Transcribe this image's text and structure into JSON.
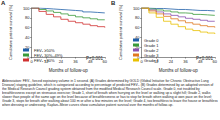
{
  "chart_data": [
    {
      "type": "line",
      "title": "A",
      "x_label": "Months of follow-up",
      "y_label": "Cumulative patient survival (%)",
      "x": [
        0,
        6,
        12,
        18,
        24,
        30,
        36,
        42,
        48,
        54,
        60
      ],
      "series": [
        {
          "name": "FEV₁ ≥50%",
          "color": "#1f5fa8",
          "values": [
            100,
            99,
            98,
            97,
            96,
            95,
            94,
            92,
            91,
            90,
            89
          ]
        },
        {
          "name": "FEV₁ 30%–49%",
          "color": "#3a9a3a",
          "values": [
            100,
            97,
            94,
            91,
            88,
            85,
            82,
            80,
            78,
            76,
            75
          ]
        },
        {
          "name": "FEV₁ <30%",
          "color": "#d03030",
          "values": [
            100,
            93,
            87,
            82,
            77,
            73,
            70,
            67,
            64,
            62,
            60
          ]
        }
      ],
      "xlim": [
        0,
        60
      ],
      "xticks": [
        0,
        12,
        24,
        36,
        48,
        60
      ],
      "ylim": [
        0,
        100
      ],
      "yticks": [
        0,
        20,
        40,
        60,
        80,
        100
      ],
      "grid": false,
      "legend": "bottom-left",
      "line_style": "step",
      "annotation": "P<0.001"
    },
    {
      "type": "line",
      "title": "B",
      "x_label": "Months of follow-up",
      "y_label": "Cumulative patient survival (%)",
      "x": [
        0,
        6,
        12,
        18,
        24,
        30,
        36,
        42,
        48,
        54,
        60
      ],
      "series": [
        {
          "name": "Grade 0",
          "color": "#1f5fa8",
          "values": [
            100,
            99,
            99,
            98,
            97,
            97,
            96,
            95,
            95,
            94,
            94
          ]
        },
        {
          "name": "Grade 1",
          "color": "#3a9a3a",
          "values": [
            100,
            98,
            96,
            94,
            92,
            90,
            89,
            87,
            86,
            85,
            84
          ]
        },
        {
          "name": "Grade 2",
          "color": "#8a4fb0",
          "values": [
            100,
            96,
            92,
            88,
            85,
            82,
            79,
            77,
            75,
            73,
            72
          ]
        },
        {
          "name": "Grade 3",
          "color": "#e07820",
          "values": [
            100,
            94,
            88,
            83,
            78,
            74,
            70,
            67,
            64,
            62,
            60
          ]
        },
        {
          "name": "Grade 4",
          "color": "#e8c000",
          "values": [
            100,
            90,
            81,
            73,
            67,
            62,
            57,
            54,
            51,
            49,
            47
          ]
        }
      ],
      "xlim": [
        0,
        60
      ],
      "xticks": [
        0,
        12,
        24,
        36,
        48,
        60
      ],
      "ylim": [
        0,
        100
      ],
      "yticks": [
        0,
        20,
        40,
        60,
        80,
        100
      ],
      "grid": false,
      "legend": "bottom-left",
      "line_style": "step",
      "annotation": "P<0.001"
    }
  ],
  "caption": "Abbreviation: FEV₁, forced expiratory volume in 1 second. (A) Grades determined by GOLD (Global Initiative for Chronic Obstructive Lung Disease) staging guideline, which is categorized according to percentage of predicted FEV₁. (B) Grades determined by an adapted version of the Medical Research Council grading system obtained from the modified Medical Research Council scale. Grade 0, not troubled by breathlessness except on strenuous exercise; Grade 1, short of breath when hurrying on the level or walking up a slight hill; Grade 2, walks slower than people of the same age on the level because of breathlessness or has to stop for breath when walking at own pace on the level; Grade 3, stops for breath after walking about 100 m or after a few minutes on the level; Grade 4, too breathless to leave the house or breathless when dressing or undressing. Kaplan–Meier curves show cumulative patient survival over the months of follow-up."
}
